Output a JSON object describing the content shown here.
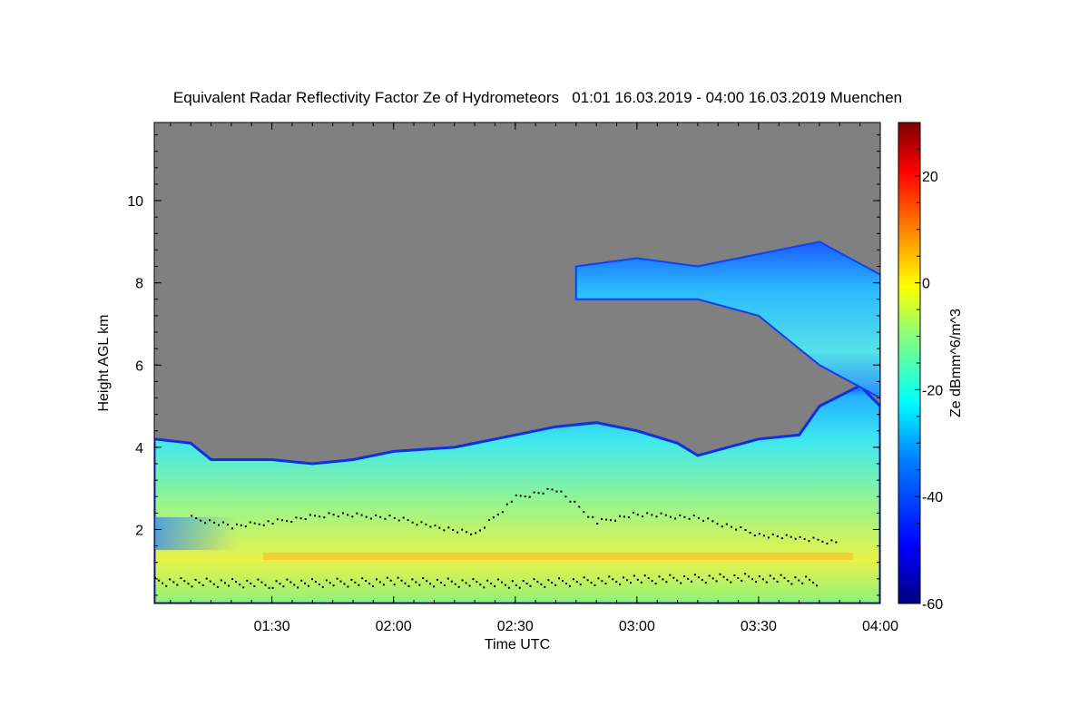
{
  "title": "Equivalent Radar Reflectivity Factor Ze of Hydrometeors   01:01 16.03.2019 - 04:00 16.03.2019 Muenchen",
  "chart_data": {
    "type": "heatmap",
    "title": "Equivalent Radar Reflectivity Factor Ze of Hydrometeors   01:01 16.03.2019 - 04:00 16.03.2019 Muenchen",
    "xlabel": "Time UTC",
    "ylabel": "Height AGL km",
    "xlim": [
      "01:01",
      "04:00"
    ],
    "ylim": [
      0.2,
      11.9
    ],
    "xticks": [
      "01:30",
      "02:00",
      "02:30",
      "03:00",
      "03:30",
      "04:00"
    ],
    "yticks": [
      2,
      4,
      6,
      8,
      10
    ],
    "colorbar": {
      "label": "Ze dBmm^6/m^3",
      "range": [
        -60,
        30
      ],
      "ticks": [
        20,
        0,
        -20,
        -40,
        -60
      ],
      "colors": [
        "#00007f",
        "#0000ff",
        "#0080ff",
        "#00ffff",
        "#80ff80",
        "#ffff00",
        "#ff8000",
        "#ff0000",
        "#7f0000"
      ]
    },
    "no_echo_color": "#808080",
    "cloud_top_km": [
      {
        "t": "01:01",
        "h": 4.2
      },
      {
        "t": "01:10",
        "h": 4.1
      },
      {
        "t": "01:15",
        "h": 3.7
      },
      {
        "t": "01:30",
        "h": 3.7
      },
      {
        "t": "01:40",
        "h": 3.6
      },
      {
        "t": "01:50",
        "h": 3.7
      },
      {
        "t": "02:00",
        "h": 3.9
      },
      {
        "t": "02:15",
        "h": 4.0
      },
      {
        "t": "02:30",
        "h": 4.3
      },
      {
        "t": "02:40",
        "h": 4.5
      },
      {
        "t": "02:50",
        "h": 4.6
      },
      {
        "t": "03:00",
        "h": 4.4
      },
      {
        "t": "03:10",
        "h": 4.1
      },
      {
        "t": "03:15",
        "h": 3.8
      },
      {
        "t": "03:30",
        "h": 4.2
      },
      {
        "t": "03:40",
        "h": 4.3
      },
      {
        "t": "03:45",
        "h": 5.0
      },
      {
        "t": "03:55",
        "h": 5.5
      },
      {
        "t": "04:00",
        "h": 5.0
      }
    ],
    "upper_cloud_km": [
      {
        "t": "02:45",
        "base": 7.6,
        "top": 8.4
      },
      {
        "t": "03:00",
        "base": 7.6,
        "top": 8.6
      },
      {
        "t": "03:15",
        "base": 7.6,
        "top": 8.4
      },
      {
        "t": "03:30",
        "base": 7.2,
        "top": 8.7
      },
      {
        "t": "03:45",
        "base": 6.0,
        "top": 9.0
      },
      {
        "t": "04:00",
        "base": 5.2,
        "top": 8.2
      }
    ],
    "melting_layer_km": 1.35,
    "cloud_base_points": {
      "upper": [
        {
          "t": "01:10",
          "h": 2.3
        },
        {
          "t": "01:20",
          "h": 2.1
        },
        {
          "t": "01:30",
          "h": 2.2
        },
        {
          "t": "01:45",
          "h": 2.4
        },
        {
          "t": "02:00",
          "h": 2.3
        },
        {
          "t": "02:10",
          "h": 2.1
        },
        {
          "t": "02:20",
          "h": 1.9
        },
        {
          "t": "02:30",
          "h": 2.8
        },
        {
          "t": "02:40",
          "h": 3.0
        },
        {
          "t": "02:50",
          "h": 2.2
        },
        {
          "t": "03:00",
          "h": 2.4
        },
        {
          "t": "03:15",
          "h": 2.3
        },
        {
          "t": "03:30",
          "h": 1.9
        },
        {
          "t": "03:40",
          "h": 1.8
        },
        {
          "t": "03:50",
          "h": 1.7
        }
      ],
      "lower": [
        {
          "t": "01:01",
          "h": 0.75
        },
        {
          "t": "01:30",
          "h": 0.7
        },
        {
          "t": "02:00",
          "h": 0.75
        },
        {
          "t": "02:30",
          "h": 0.7
        },
        {
          "t": "03:00",
          "h": 0.8
        },
        {
          "t": "03:30",
          "h": 0.85
        },
        {
          "t": "03:45",
          "h": 0.75
        }
      ]
    }
  }
}
